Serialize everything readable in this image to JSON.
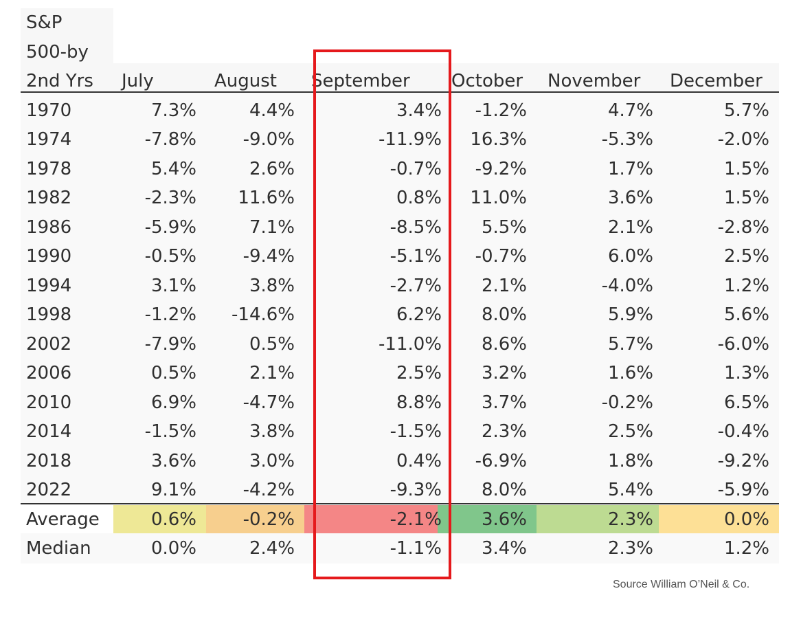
{
  "chart_data": {
    "type": "table",
    "corner_label": [
      "S&P",
      "500-by",
      "2nd Yrs"
    ],
    "columns": [
      "July",
      "August",
      "September",
      "October",
      "November",
      "December"
    ],
    "rows": [
      {
        "year": "1970",
        "values": [
          "7.3%",
          "4.4%",
          "3.4%",
          "-1.2%",
          "4.7%",
          "5.7%"
        ]
      },
      {
        "year": "1974",
        "values": [
          "-7.8%",
          "-9.0%",
          "-11.9%",
          "16.3%",
          "-5.3%",
          "-2.0%"
        ]
      },
      {
        "year": "1978",
        "values": [
          "5.4%",
          "2.6%",
          "-0.7%",
          "-9.2%",
          "1.7%",
          "1.5%"
        ]
      },
      {
        "year": "1982",
        "values": [
          "-2.3%",
          "11.6%",
          "0.8%",
          "11.0%",
          "3.6%",
          "1.5%"
        ]
      },
      {
        "year": "1986",
        "values": [
          "-5.9%",
          "7.1%",
          "-8.5%",
          "5.5%",
          "2.1%",
          "-2.8%"
        ]
      },
      {
        "year": "1990",
        "values": [
          "-0.5%",
          "-9.4%",
          "-5.1%",
          "-0.7%",
          "6.0%",
          "2.5%"
        ]
      },
      {
        "year": "1994",
        "values": [
          "3.1%",
          "3.8%",
          "-2.7%",
          "2.1%",
          "-4.0%",
          "1.2%"
        ]
      },
      {
        "year": "1998",
        "values": [
          "-1.2%",
          "-14.6%",
          "6.2%",
          "8.0%",
          "5.9%",
          "5.6%"
        ]
      },
      {
        "year": "2002",
        "values": [
          "-7.9%",
          "0.5%",
          "-11.0%",
          "8.6%",
          "5.7%",
          "-6.0%"
        ]
      },
      {
        "year": "2006",
        "values": [
          "0.5%",
          "2.1%",
          "2.5%",
          "3.2%",
          "1.6%",
          "1.3%"
        ]
      },
      {
        "year": "2010",
        "values": [
          "6.9%",
          "-4.7%",
          "8.8%",
          "3.7%",
          "-0.2%",
          "6.5%"
        ]
      },
      {
        "year": "2014",
        "values": [
          "-1.5%",
          "3.8%",
          "-1.5%",
          "2.3%",
          "2.5%",
          "-0.4%"
        ]
      },
      {
        "year": "2018",
        "values": [
          "3.6%",
          "3.0%",
          "0.4%",
          "-6.9%",
          "1.8%",
          "-9.2%"
        ]
      },
      {
        "year": "2022",
        "values": [
          "9.1%",
          "-4.2%",
          "-9.3%",
          "8.0%",
          "5.4%",
          "-5.9%"
        ]
      }
    ],
    "summary": [
      {
        "label": "Average",
        "values": [
          "0.6%",
          "-0.2%",
          "-2.1%",
          "3.6%",
          "2.3%",
          "0.0%"
        ],
        "colors": [
          "#eee896",
          "#f7cf8e",
          "#f48686",
          "#80c68b",
          "#bddb92",
          "#fde096"
        ]
      },
      {
        "label": "Median",
        "values": [
          "0.0%",
          "2.4%",
          "-1.1%",
          "3.4%",
          "2.3%",
          "1.2%"
        ]
      }
    ],
    "highlighted_column": "September",
    "highlight_color": "#e5191c"
  },
  "source": "Source William O’Neil & Co."
}
